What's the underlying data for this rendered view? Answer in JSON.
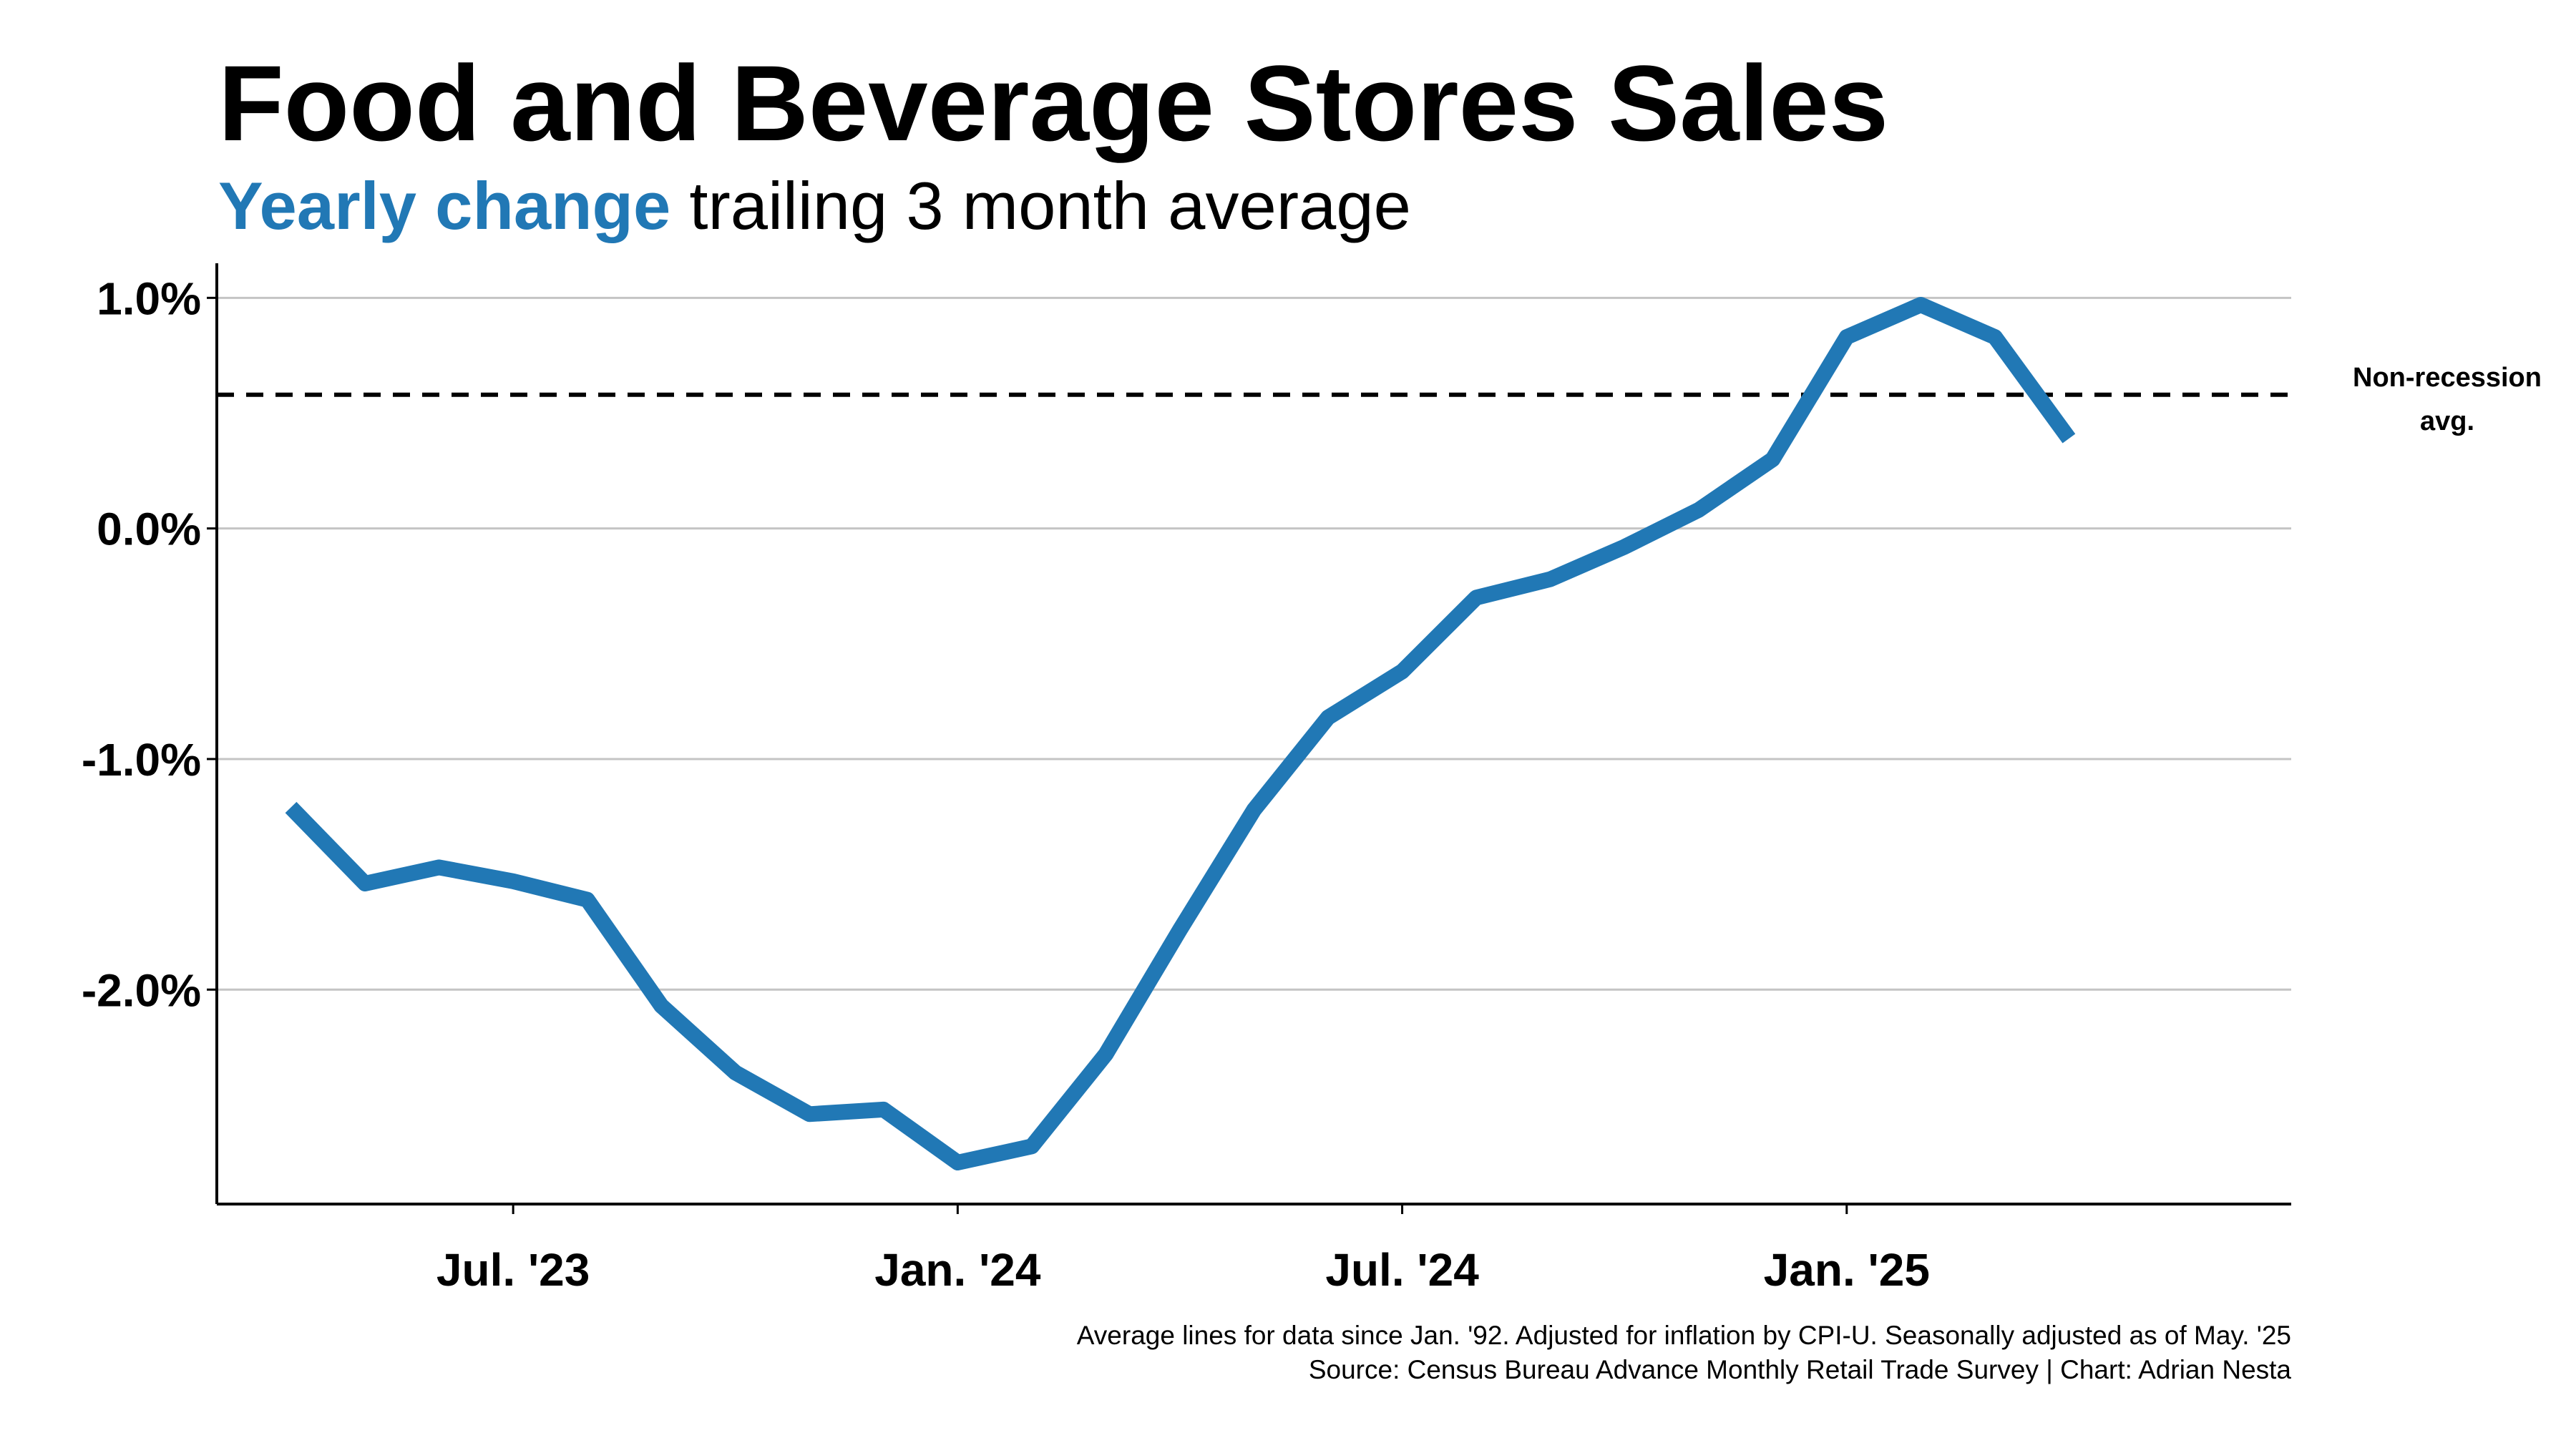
{
  "chart_data": {
    "type": "line",
    "title": "Food and Beverage Stores Sales",
    "subtitle_highlight": "Yearly change",
    "subtitle_rest": "trailing 3 month average",
    "xlabel": "",
    "ylabel": "",
    "ylim": [
      -2.93,
      1.15
    ],
    "y_ticks": [
      {
        "value": 1.0,
        "label": "1.0%"
      },
      {
        "value": 0.0,
        "label": "0.0%"
      },
      {
        "value": -1.0,
        "label": "-1.0%"
      },
      {
        "value": -2.0,
        "label": "-2.0%"
      }
    ],
    "x_ticks": [
      {
        "value": "2023-07",
        "label": "Jul. '23"
      },
      {
        "value": "2024-01",
        "label": "Jan. '24"
      },
      {
        "value": "2024-07",
        "label": "Jul. '24"
      },
      {
        "value": "2025-01",
        "label": "Jan. '25"
      }
    ],
    "x_range": [
      "2023-03",
      "2025-07"
    ],
    "grid": {
      "horizontal": true,
      "vertical": false
    },
    "series": [
      {
        "color": "#2178b5",
        "points": [
          {
            "x": "2023-04",
            "y": -1.21
          },
          {
            "x": "2023-05",
            "y": -1.54
          },
          {
            "x": "2023-06",
            "y": -1.47
          },
          {
            "x": "2023-07",
            "y": -1.53
          },
          {
            "x": "2023-08",
            "y": -1.61
          },
          {
            "x": "2023-09",
            "y": -2.07
          },
          {
            "x": "2023-10",
            "y": -2.36
          },
          {
            "x": "2023-11",
            "y": -2.54
          },
          {
            "x": "2023-12",
            "y": -2.52
          },
          {
            "x": "2024-01",
            "y": -2.75
          },
          {
            "x": "2024-02",
            "y": -2.68
          },
          {
            "x": "2024-03",
            "y": -2.28
          },
          {
            "x": "2024-04",
            "y": -1.74
          },
          {
            "x": "2024-05",
            "y": -1.22
          },
          {
            "x": "2024-06",
            "y": -0.82
          },
          {
            "x": "2024-07",
            "y": -0.62
          },
          {
            "x": "2024-08",
            "y": -0.3
          },
          {
            "x": "2024-09",
            "y": -0.22
          },
          {
            "x": "2024-10",
            "y": -0.08
          },
          {
            "x": "2024-11",
            "y": 0.08
          },
          {
            "x": "2024-12",
            "y": 0.3
          },
          {
            "x": "2025-01",
            "y": 0.83
          },
          {
            "x": "2025-02",
            "y": 0.97
          },
          {
            "x": "2025-03",
            "y": 0.83
          },
          {
            "x": "2025-04",
            "y": 0.39
          }
        ]
      }
    ],
    "reference_lines": [
      {
        "value": 0.58,
        "style": "dashed",
        "color": "#000000",
        "label_line1": "Non-recession",
        "label_line2": "avg."
      }
    ],
    "notes": [
      "Average lines for data since Jan. '92. Adjusted for inflation by CPI-U. Seasonally adjusted as of May. '25",
      "Source: Census Bureau Advance Monthly Retail Trade Survey | Chart: Adrian Nesta"
    ]
  }
}
